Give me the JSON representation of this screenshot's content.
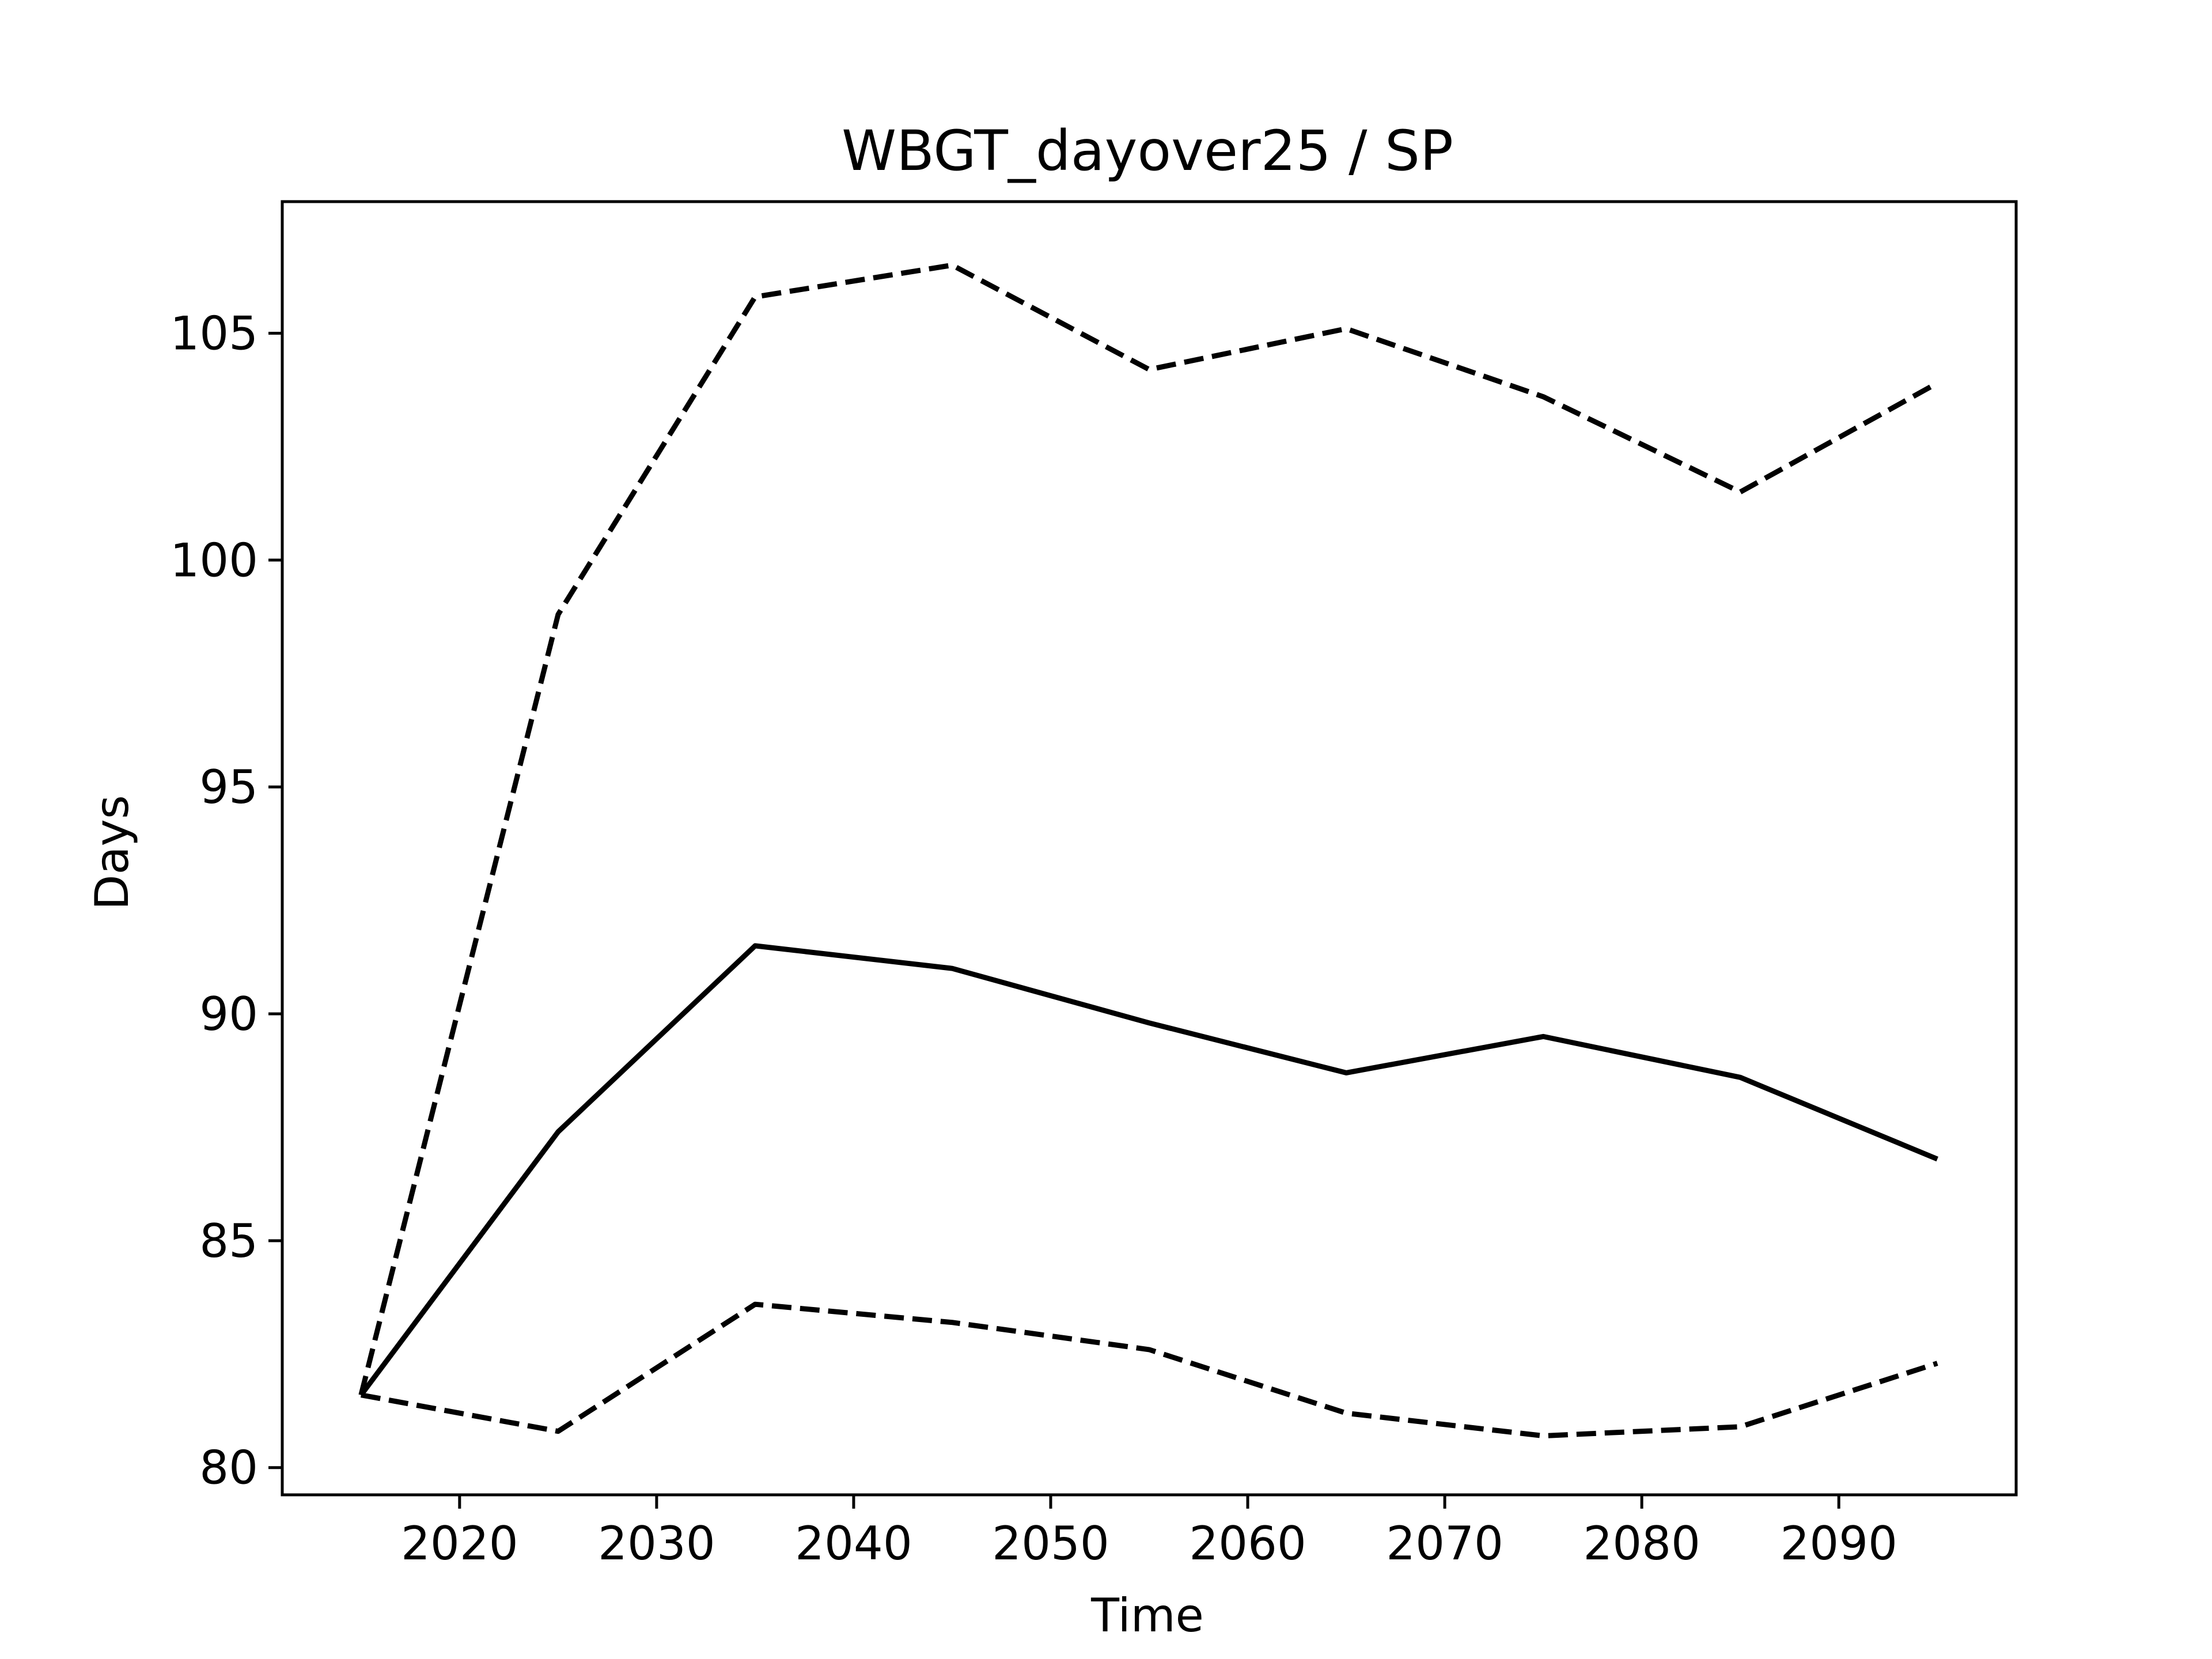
{
  "chart_data": {
    "type": "line",
    "title": "WBGT_dayover25 / SP",
    "xlabel": "Time",
    "ylabel": "Days",
    "xlim": [
      2011,
      2099
    ],
    "ylim": [
      79.4,
      107.9
    ],
    "xticks": [
      2020,
      2030,
      2040,
      2050,
      2060,
      2070,
      2080,
      2090
    ],
    "yticks": [
      80,
      85,
      90,
      95,
      100,
      105
    ],
    "grid": false,
    "x": [
      2015,
      2025,
      2035,
      2045,
      2055,
      2065,
      2075,
      2085,
      2095
    ],
    "series": [
      {
        "style": "solid",
        "color": "#000000",
        "values": [
          81.6,
          87.4,
          91.5,
          91.0,
          89.8,
          88.7,
          89.5,
          88.6,
          86.8
        ]
      },
      {
        "style": "dashed",
        "color": "#000000",
        "values": [
          81.6,
          98.8,
          105.8,
          106.5,
          104.2,
          105.1,
          103.6,
          101.5,
          103.9
        ]
      },
      {
        "style": "dashed",
        "color": "#000000",
        "values": [
          81.6,
          80.8,
          83.6,
          83.2,
          82.6,
          81.2,
          80.7,
          80.9,
          82.3
        ]
      }
    ]
  }
}
